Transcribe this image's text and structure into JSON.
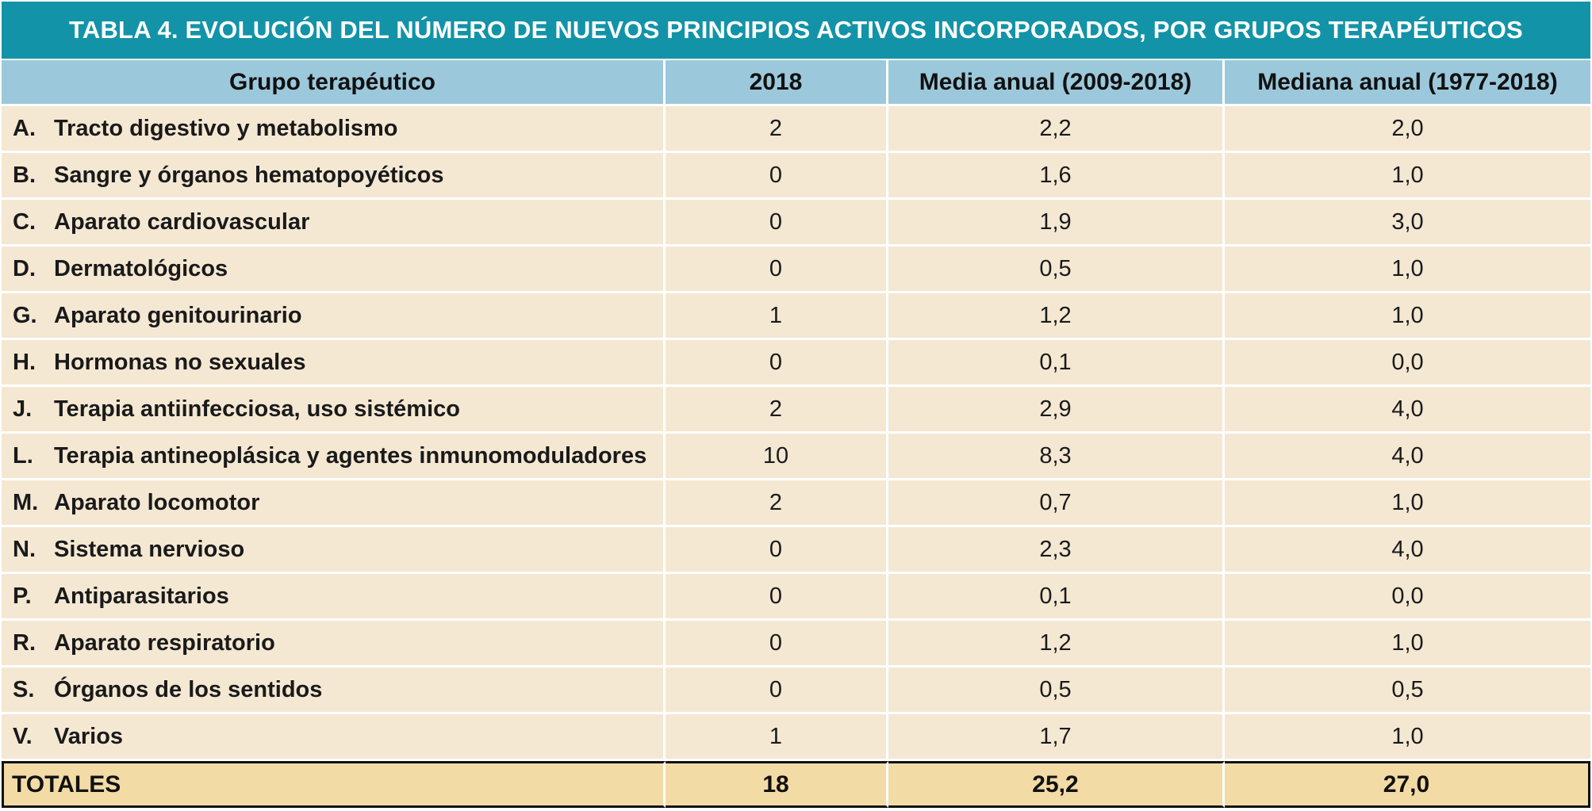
{
  "title": "TABLA 4. EVOLUCIÓN DEL NÚMERO DE NUEVOS PRINCIPIOS ACTIVOS INCORPORADOS, POR GRUPOS TERAPÉUTICOS",
  "headers": {
    "group": "Grupo terapéutico",
    "year": "2018",
    "mean": "Media anual (2009-2018)",
    "median": "Mediana anual (1977-2018)"
  },
  "rows": [
    {
      "code": "A.",
      "name": "Tracto digestivo y metabolismo",
      "year": "2",
      "mean": "2,2",
      "median": "2,0"
    },
    {
      "code": "B.",
      "name": "Sangre y órganos hematopoyéticos",
      "year": "0",
      "mean": "1,6",
      "median": "1,0"
    },
    {
      "code": "C.",
      "name": "Aparato cardiovascular",
      "year": "0",
      "mean": "1,9",
      "median": "3,0"
    },
    {
      "code": "D.",
      "name": "Dermatológicos",
      "year": "0",
      "mean": "0,5",
      "median": "1,0"
    },
    {
      "code": "G.",
      "name": "Aparato genitourinario",
      "year": "1",
      "mean": "1,2",
      "median": "1,0"
    },
    {
      "code": "H.",
      "name": "Hormonas no sexuales",
      "year": "0",
      "mean": "0,1",
      "median": "0,0"
    },
    {
      "code": "J.",
      "name": "Terapia antiinfecciosa, uso sistémico",
      "year": "2",
      "mean": "2,9",
      "median": "4,0"
    },
    {
      "code": "L.",
      "name": "Terapia antineoplásica y agentes inmunomoduladores",
      "year": "10",
      "mean": "8,3",
      "median": "4,0"
    },
    {
      "code": "M.",
      "name": "Aparato locomotor",
      "year": "2",
      "mean": "0,7",
      "median": "1,0"
    },
    {
      "code": "N.",
      "name": "Sistema nervioso",
      "year": "0",
      "mean": "2,3",
      "median": "4,0"
    },
    {
      "code": "P.",
      "name": "Antiparasitarios",
      "year": "0",
      "mean": "0,1",
      "median": "0,0"
    },
    {
      "code": "R.",
      "name": "Aparato respiratorio",
      "year": "0",
      "mean": "1,2",
      "median": "1,0"
    },
    {
      "code": "S.",
      "name": "Órganos de los sentidos",
      "year": "0",
      "mean": "0,5",
      "median": "0,5"
    },
    {
      "code": "V.",
      "name": "Varios",
      "year": "1",
      "mean": "1,7",
      "median": "1,0"
    }
  ],
  "totals": {
    "label": "TOTALES",
    "year": "18",
    "mean": "25,2",
    "median": "27,0"
  },
  "colors": {
    "title_bg": "#1393a8",
    "header_bg": "#9cc8db",
    "row_bg": "#f4e8d3",
    "totals_bg": "#f3dba6"
  }
}
